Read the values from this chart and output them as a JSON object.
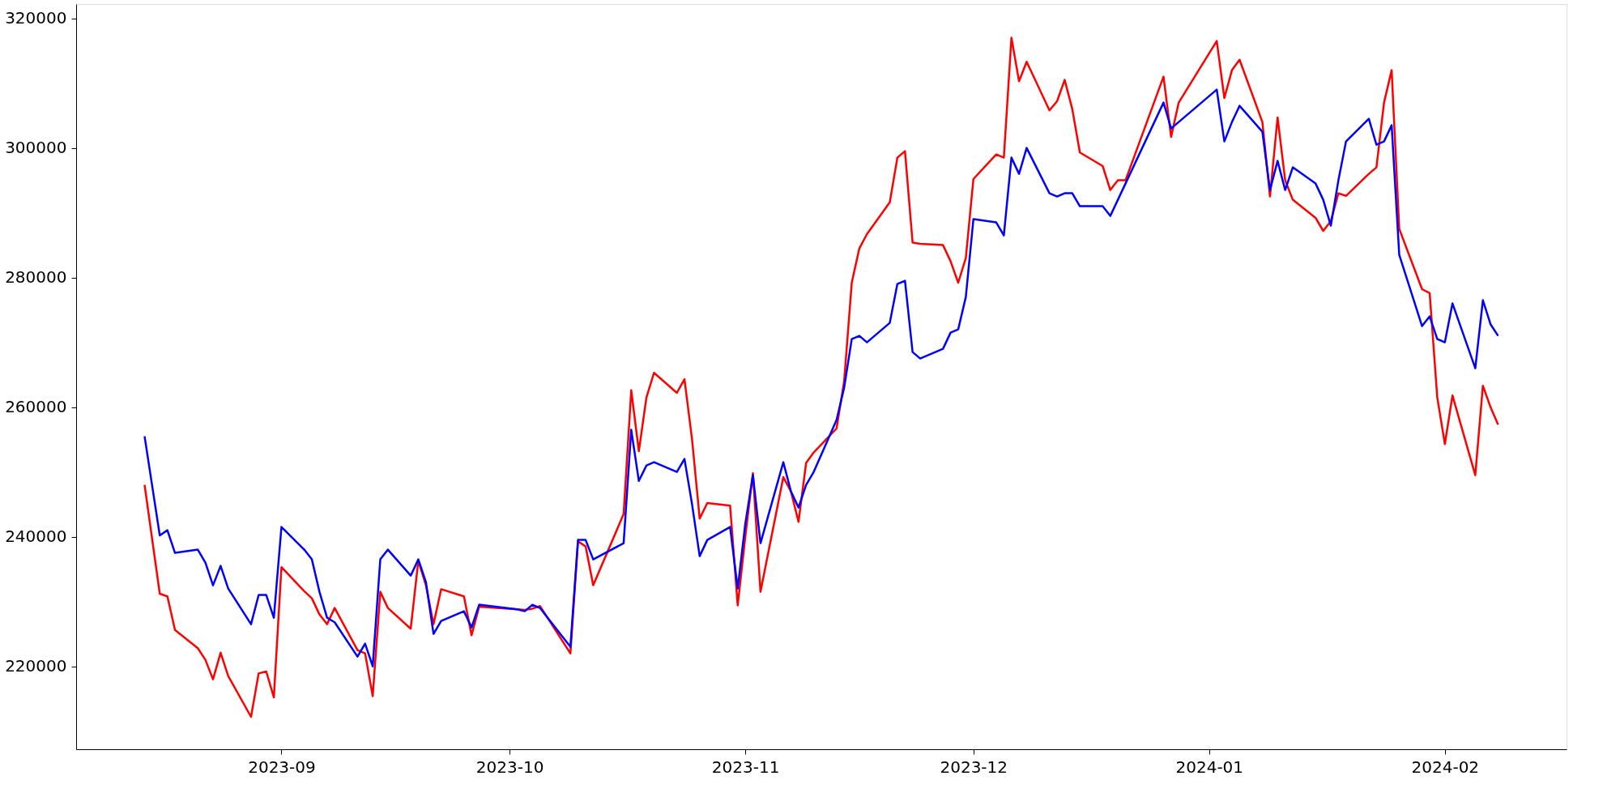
{
  "chart_data": {
    "type": "line",
    "x": [
      "2023-08-14",
      "2023-08-16",
      "2023-08-17",
      "2023-08-18",
      "2023-08-21",
      "2023-08-22",
      "2023-08-23",
      "2023-08-24",
      "2023-08-25",
      "2023-08-28",
      "2023-08-29",
      "2023-08-30",
      "2023-08-31",
      "2023-09-01",
      "2023-09-04",
      "2023-09-05",
      "2023-09-06",
      "2023-09-07",
      "2023-09-08",
      "2023-09-11",
      "2023-09-12",
      "2023-09-13",
      "2023-09-14",
      "2023-09-15",
      "2023-09-18",
      "2023-09-19",
      "2023-09-20",
      "2023-09-21",
      "2023-09-22",
      "2023-09-25",
      "2023-09-26",
      "2023-09-27",
      "2023-10-02",
      "2023-10-03",
      "2023-10-04",
      "2023-10-05",
      "2023-10-09",
      "2023-10-10",
      "2023-10-11",
      "2023-10-12",
      "2023-10-16",
      "2023-10-17",
      "2023-10-18",
      "2023-10-19",
      "2023-10-20",
      "2023-10-23",
      "2023-10-24",
      "2023-10-25",
      "2023-10-26",
      "2023-10-27",
      "2023-10-30",
      "2023-10-31",
      "2023-11-01",
      "2023-11-02",
      "2023-11-03",
      "2023-11-06",
      "2023-11-07",
      "2023-11-08",
      "2023-11-09",
      "2023-11-10",
      "2023-11-13",
      "2023-11-14",
      "2023-11-15",
      "2023-11-16",
      "2023-11-17",
      "2023-11-20",
      "2023-11-21",
      "2023-11-22",
      "2023-11-23",
      "2023-11-24",
      "2023-11-27",
      "2023-11-28",
      "2023-11-29",
      "2023-11-30",
      "2023-12-01",
      "2023-12-04",
      "2023-12-05",
      "2023-12-06",
      "2023-12-07",
      "2023-12-08",
      "2023-12-11",
      "2023-12-12",
      "2023-12-13",
      "2023-12-14",
      "2023-12-15",
      "2023-12-18",
      "2023-12-19",
      "2023-12-20",
      "2023-12-21",
      "2023-12-26",
      "2023-12-27",
      "2023-12-28",
      "2024-01-02",
      "2024-01-03",
      "2024-01-04",
      "2024-01-05",
      "2024-01-08",
      "2024-01-09",
      "2024-01-10",
      "2024-01-11",
      "2024-01-12",
      "2024-01-15",
      "2024-01-16",
      "2024-01-17",
      "2024-01-18",
      "2024-01-19",
      "2024-01-22",
      "2024-01-23",
      "2024-01-24",
      "2024-01-25",
      "2024-01-26",
      "2024-01-29",
      "2024-01-30",
      "2024-01-31",
      "2024-02-01",
      "2024-02-02",
      "2024-02-05",
      "2024-02-06",
      "2024-02-07",
      "2024-02-08"
    ],
    "series": [
      {
        "color": "#ff0000",
        "values": [
          248000,
          231200,
          230800,
          225600,
          222800,
          221000,
          218000,
          222100,
          218500,
          212200,
          218900,
          219200,
          215200,
          235300,
          231600,
          230500,
          228000,
          226500,
          229000,
          222500,
          222000,
          215400,
          231500,
          229000,
          225800,
          236300,
          232500,
          226500,
          231900,
          230800,
          224800,
          229200,
          228800,
          228700,
          228900,
          229300,
          222000,
          239300,
          238500,
          232500,
          243500,
          262600,
          253200,
          261500,
          265300,
          262200,
          264300,
          255000,
          242800,
          245200,
          244800,
          229400,
          240000,
          249800,
          231500,
          249200,
          247000,
          242300,
          251400,
          253000,
          256700,
          264000,
          279200,
          284500,
          286700,
          291600,
          298500,
          299500,
          285400,
          285200,
          285000,
          282500,
          279200,
          283000,
          295200,
          299000,
          298500,
          317000,
          310300,
          313300,
          305800,
          307200,
          310500,
          306000,
          299300,
          297200,
          293500,
          295000,
          295000,
          311000,
          301700,
          307000,
          316500,
          307700,
          312000,
          313600,
          304000,
          292500,
          304700,
          295000,
          292000,
          289200,
          287200,
          288700,
          293000,
          292600,
          296000,
          297000,
          307000,
          312000,
          287500,
          278200,
          277600,
          261500,
          254300,
          261800,
          249500,
          263300,
          260000,
          257300
        ]
      },
      {
        "color": "#0000ff",
        "values": [
          255500,
          240200,
          241000,
          237500,
          238000,
          236000,
          232500,
          235500,
          232000,
          226500,
          231000,
          231000,
          227500,
          241500,
          238000,
          236500,
          231500,
          227500,
          226800,
          221500,
          223500,
          220000,
          236500,
          238000,
          234000,
          236500,
          233000,
          225000,
          227000,
          228500,
          226000,
          229500,
          228800,
          228500,
          229500,
          229000,
          223000,
          239500,
          239500,
          236500,
          239000,
          256500,
          248600,
          251000,
          251500,
          250000,
          252000,
          245000,
          237000,
          239500,
          241500,
          232000,
          242000,
          249500,
          239000,
          251500,
          247000,
          244500,
          248000,
          250000,
          258000,
          263000,
          270500,
          271000,
          270000,
          273000,
          279000,
          279500,
          268500,
          267500,
          269000,
          271500,
          272000,
          277000,
          289000,
          288500,
          286500,
          298500,
          296000,
          300000,
          293000,
          292500,
          293000,
          293000,
          291000,
          291000,
          289500,
          292000,
          294500,
          307000,
          303000,
          304000,
          309000,
          301000,
          304000,
          306500,
          302500,
          293500,
          298000,
          293500,
          297000,
          294500,
          292000,
          288000,
          295000,
          301000,
          304500,
          300500,
          301000,
          303500,
          283500,
          272500,
          274000,
          270500,
          270000,
          276000,
          266000,
          276500,
          272800,
          271000
        ]
      }
    ],
    "xlim": [
      "2023-08-05",
      "2024-02-17"
    ],
    "xticks": [
      "2023-09",
      "2023-10",
      "2023-11",
      "2023-12",
      "2024-01",
      "2024-02"
    ],
    "ylim": [
      207200,
      322200
    ],
    "yticks": [
      220000,
      240000,
      260000,
      280000,
      300000,
      320000
    ],
    "grid": false,
    "legend": false,
    "marker": "none",
    "line_style": "solid"
  }
}
